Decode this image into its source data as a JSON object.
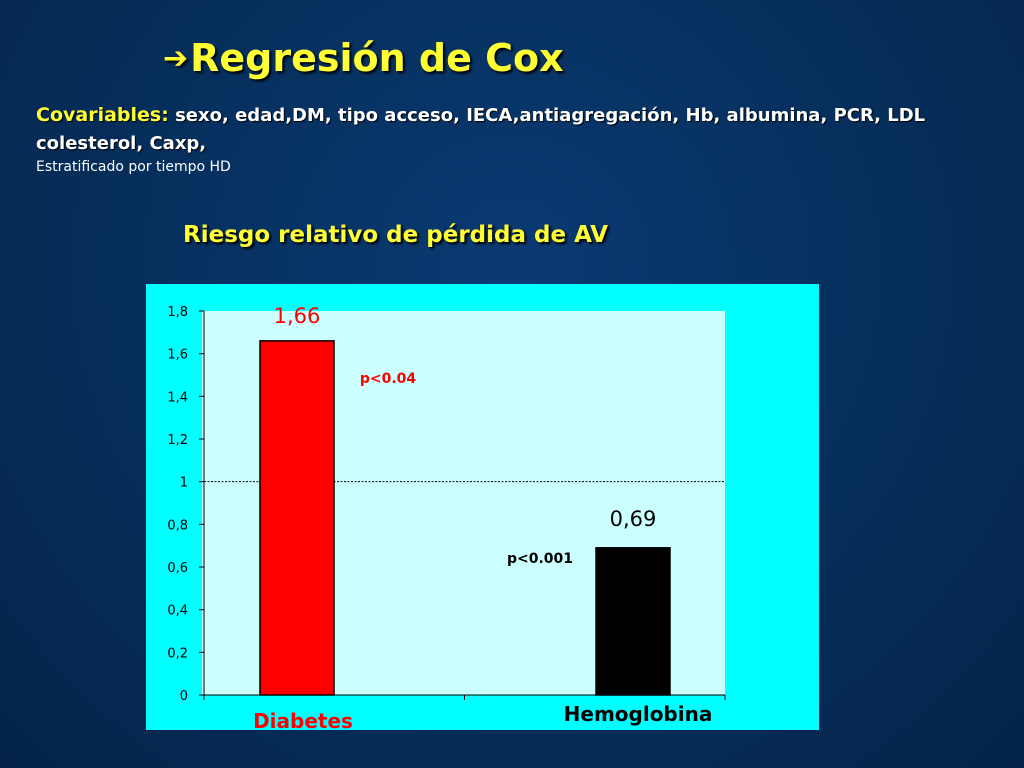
{
  "slide": {
    "title": "Regresión de Cox",
    "arrow_icon": "➔",
    "covariates_label": "Covariables:",
    "covariates_text": " sexo, edad,DM, tipo acceso, IECA,antiagregación, Hb, albumina, PCR, LDL colesterol, Caxp,",
    "stratified": "Estratificado por tiempo HD",
    "chart_heading": "Riesgo relativo de pérdida de AV"
  },
  "colors": {
    "title": "#ffff33",
    "chart_background": "#00ffff",
    "plot_area": "#ccffff",
    "diabetes_bar": "#ff0000",
    "hemoglobina_bar": "#000000",
    "diabetes_label": "#ff0000",
    "hemoglobina_label": "#000000",
    "p_value_red": "#ff0000",
    "p_value_black": "#000000",
    "reference_line": "#000000"
  },
  "chart_data": {
    "type": "bar",
    "title": "Riesgo relativo de pérdida de AV",
    "categories": [
      "Diabetes",
      "Hemoglobina"
    ],
    "values": [
      1.66,
      0.69
    ],
    "value_labels": [
      "1,66",
      "0,69"
    ],
    "p_values": [
      "p<0.04",
      "p<0.001"
    ],
    "ylim": [
      0,
      1.8
    ],
    "yticks": [
      0,
      0.2,
      0.4,
      0.6,
      0.8,
      1,
      1.2,
      1.4,
      1.6,
      1.8
    ],
    "ytick_labels": [
      "0",
      "0,2",
      "0,4",
      "0,6",
      "0,8",
      "1",
      "1,2",
      "1,4",
      "1,6",
      "1,8"
    ],
    "reference_line": 1,
    "grid": false,
    "legend": "none"
  }
}
